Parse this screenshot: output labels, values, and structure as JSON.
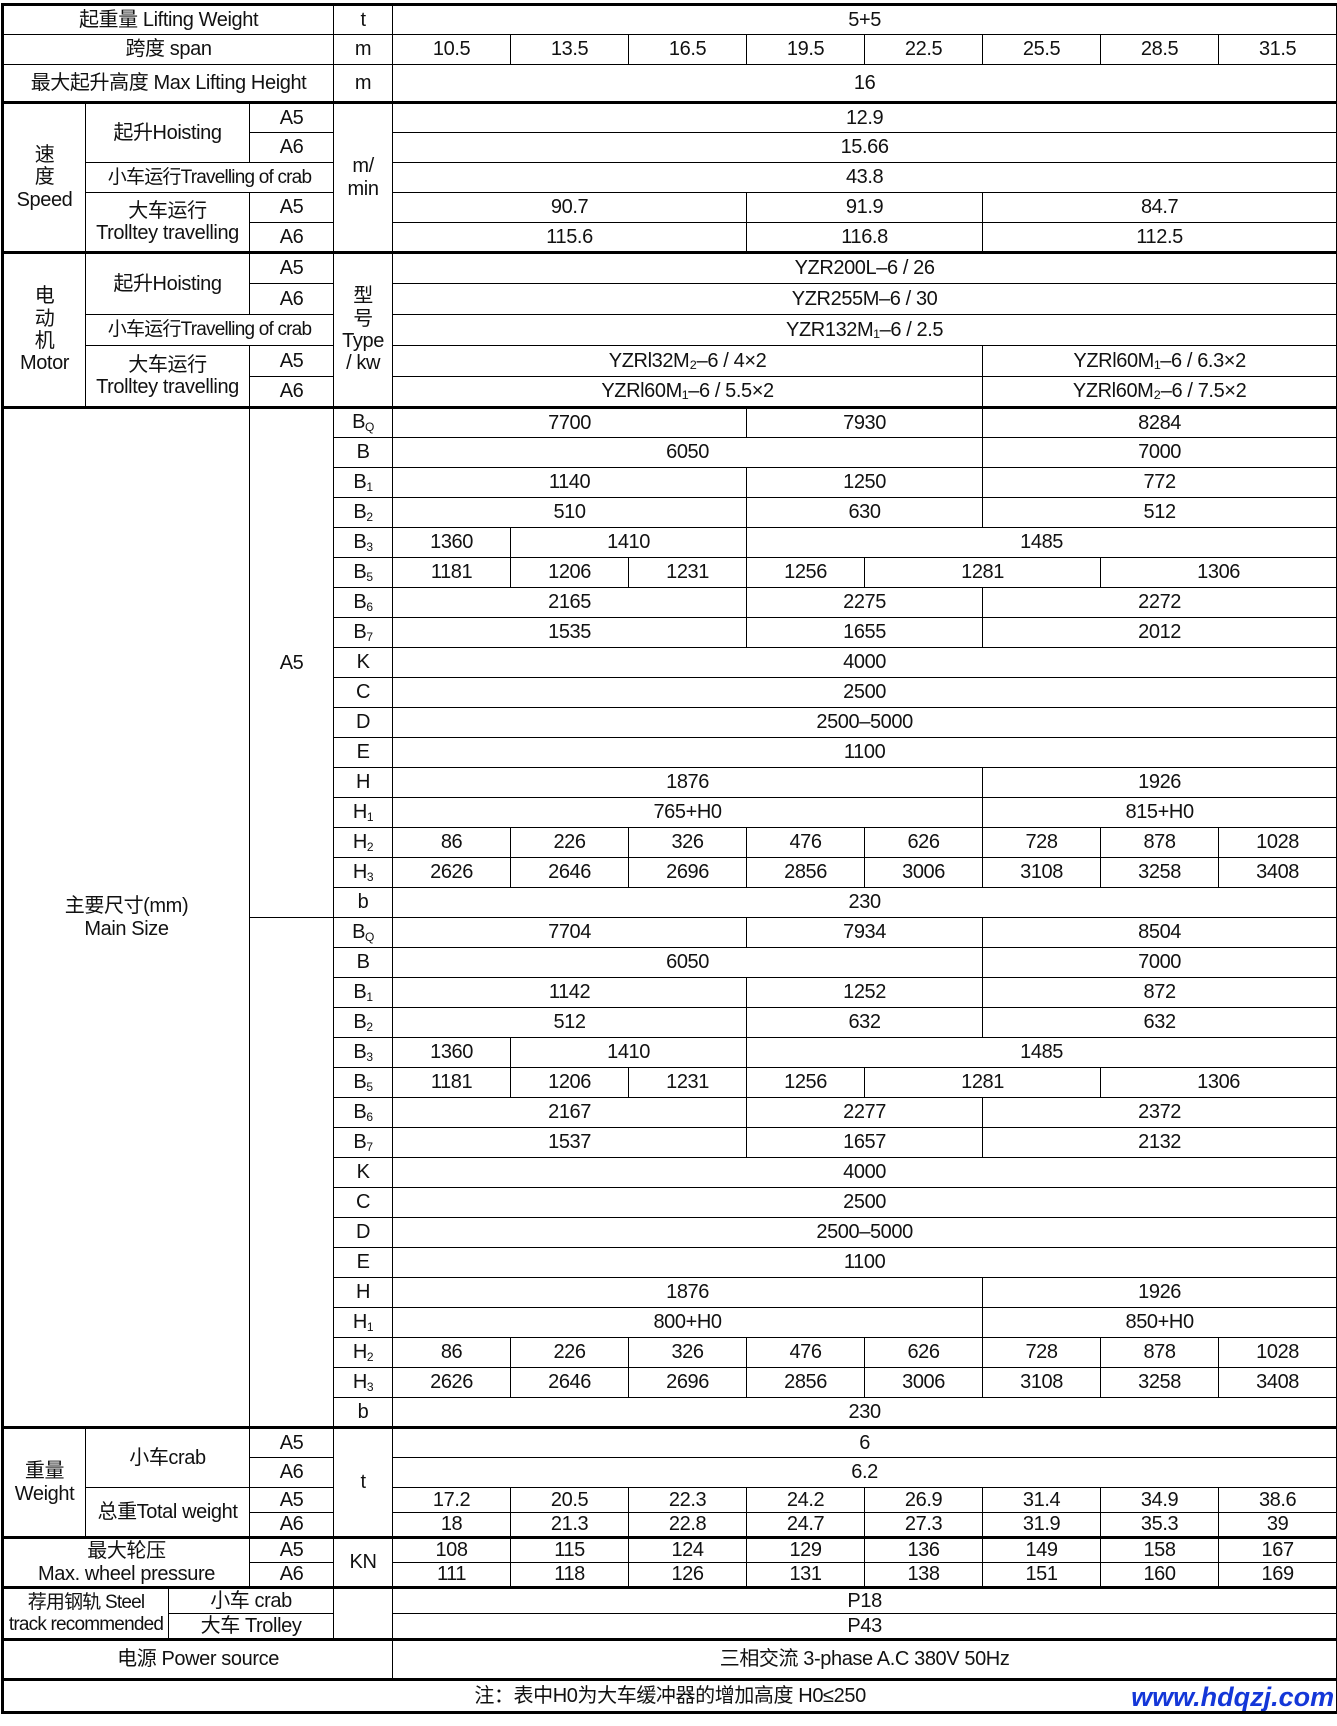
{
  "grades": [
    "A5",
    "A6"
  ],
  "header": {
    "lifting_weight": {
      "label": "起重量 Lifting Weight",
      "unit": "t",
      "values": [
        {
          "v": "5+5",
          "spans": 8
        }
      ]
    },
    "span": {
      "label": "跨度 span",
      "unit": "m",
      "values": [
        "10.5",
        "13.5",
        "16.5",
        "19.5",
        "22.5",
        "25.5",
        "28.5",
        "31.5"
      ]
    },
    "max_height": {
      "label": "最大起升高度 Max Lifting Height",
      "unit": "m",
      "values": [
        {
          "v": "16",
          "spans": 8
        }
      ]
    }
  },
  "speed": {
    "label": [
      "速",
      "度",
      "Speed"
    ],
    "unit": [
      "m/",
      "min"
    ],
    "hoisting": {
      "label": "起升Hoisting",
      "A5": [
        {
          "v": "12.9",
          "spans": 8
        }
      ],
      "A6": [
        {
          "v": "15.66",
          "spans": 8
        }
      ]
    },
    "crab": {
      "label": "小车运行Travelling of crab",
      "values": [
        {
          "v": "43.8",
          "spans": 8
        }
      ]
    },
    "trolley": {
      "label": [
        "大车运行",
        "Trolltey travelling"
      ],
      "A5": [
        {
          "v": "90.7",
          "spans": 3
        },
        {
          "v": "91.9",
          "spans": 2
        },
        {
          "v": "84.7",
          "spans": 3
        }
      ],
      "A6": [
        {
          "v": "115.6",
          "spans": 3
        },
        {
          "v": "116.8",
          "spans": 2
        },
        {
          "v": "112.5",
          "spans": 3
        }
      ]
    }
  },
  "motor": {
    "label": [
      "电",
      "动",
      "机",
      "Motor"
    ],
    "unit": [
      "型",
      "号",
      "Type",
      "/ kw"
    ],
    "hoisting": {
      "label": "起升Hoisting",
      "A5": [
        {
          "v": "YZR200L–6 / 26",
          "spans": 8
        }
      ],
      "A6": [
        {
          "v": "YZR255M–6 / 30",
          "spans": 8
        }
      ]
    },
    "crab": {
      "label": "小车运行Travelling of crab",
      "values": [
        {
          "v": "YZR132M₁–6 / 2.5",
          "spans": 8
        }
      ]
    },
    "trolley": {
      "label": [
        "大车运行",
        "Trolltey travelling"
      ],
      "A5": [
        {
          "v": "YZRl32M₂–6 / 4×2",
          "spans": 5
        },
        {
          "v": "YZRl60M₁–6 / 6.3×2",
          "spans": 3
        }
      ],
      "A6": [
        {
          "v": "YZRl60M₁–6 / 5.5×2",
          "spans": 5
        },
        {
          "v": "YZRl60M₂–6 / 7.5×2",
          "spans": 3
        }
      ]
    }
  },
  "main_size": {
    "label": [
      "主要尺寸(mm)",
      "Main Size"
    ],
    "groups": [
      {
        "grade": "A5",
        "rows": [
          {
            "param": "B",
            "sub": "Q",
            "values": [
              {
                "v": "7700",
                "spans": 3
              },
              {
                "v": "7930",
                "spans": 2
              },
              {
                "v": "8284",
                "spans": 3
              }
            ]
          },
          {
            "param": "B",
            "sub": "",
            "values": [
              {
                "v": "6050",
                "spans": 5
              },
              {
                "v": "7000",
                "spans": 3
              }
            ]
          },
          {
            "param": "B",
            "sub": "1",
            "values": [
              {
                "v": "1140",
                "spans": 3
              },
              {
                "v": "1250",
                "spans": 2
              },
              {
                "v": "772",
                "spans": 3
              }
            ]
          },
          {
            "param": "B",
            "sub": "2",
            "values": [
              {
                "v": "510",
                "spans": 3
              },
              {
                "v": "630",
                "spans": 2
              },
              {
                "v": "512",
                "spans": 3
              }
            ]
          },
          {
            "param": "B",
            "sub": "3",
            "values": [
              {
                "v": "1360",
                "spans": 1
              },
              {
                "v": "1410",
                "spans": 2
              },
              {
                "v": "1485",
                "spans": 5
              }
            ]
          },
          {
            "param": "B",
            "sub": "5",
            "values": [
              {
                "v": "1181",
                "spans": 1
              },
              {
                "v": "1206",
                "spans": 1
              },
              {
                "v": "1231",
                "spans": 1
              },
              {
                "v": "1256",
                "spans": 1
              },
              {
                "v": "1281",
                "spans": 2
              },
              {
                "v": "1306",
                "spans": 2
              }
            ]
          },
          {
            "param": "B",
            "sub": "6",
            "values": [
              {
                "v": "2165",
                "spans": 3
              },
              {
                "v": "2275",
                "spans": 2
              },
              {
                "v": "2272",
                "spans": 3
              }
            ]
          },
          {
            "param": "B",
            "sub": "7",
            "values": [
              {
                "v": "1535",
                "spans": 3
              },
              {
                "v": "1655",
                "spans": 2
              },
              {
                "v": "2012",
                "spans": 3
              }
            ]
          },
          {
            "param": "K",
            "sub": "",
            "values": [
              {
                "v": "4000",
                "spans": 8
              }
            ]
          },
          {
            "param": "C",
            "sub": "",
            "values": [
              {
                "v": "2500",
                "spans": 8
              }
            ]
          },
          {
            "param": "D",
            "sub": "",
            "values": [
              {
                "v": "2500–5000",
                "spans": 8
              }
            ]
          },
          {
            "param": "E",
            "sub": "",
            "values": [
              {
                "v": "1100",
                "spans": 8
              }
            ]
          },
          {
            "param": "H",
            "sub": "",
            "values": [
              {
                "v": "1876",
                "spans": 5
              },
              {
                "v": "1926",
                "spans": 3
              }
            ]
          },
          {
            "param": "H",
            "sub": "1",
            "values": [
              {
                "v": "765+H0",
                "spans": 5
              },
              {
                "v": "815+H0",
                "spans": 3
              }
            ]
          },
          {
            "param": "H",
            "sub": "2",
            "values": [
              "86",
              "226",
              "326",
              "476",
              "626",
              "728",
              "878",
              "1028"
            ]
          },
          {
            "param": "H",
            "sub": "3",
            "values": [
              "2626",
              "2646",
              "2696",
              "2856",
              "3006",
              "3108",
              "3258",
              "3408"
            ]
          },
          {
            "param": "b",
            "sub": "",
            "values": [
              {
                "v": "230",
                "spans": 8
              }
            ]
          }
        ]
      },
      {
        "grade": "",
        "rows": [
          {
            "param": "B",
            "sub": "Q",
            "values": [
              {
                "v": "7704",
                "spans": 3
              },
              {
                "v": "7934",
                "spans": 2
              },
              {
                "v": "8504",
                "spans": 3
              }
            ]
          },
          {
            "param": "B",
            "sub": "",
            "values": [
              {
                "v": "6050",
                "spans": 5
              },
              {
                "v": "7000",
                "spans": 3
              }
            ]
          },
          {
            "param": "B",
            "sub": "1",
            "values": [
              {
                "v": "1142",
                "spans": 3
              },
              {
                "v": "1252",
                "spans": 2
              },
              {
                "v": "872",
                "spans": 3
              }
            ]
          },
          {
            "param": "B",
            "sub": "2",
            "values": [
              {
                "v": "512",
                "spans": 3
              },
              {
                "v": "632",
                "spans": 2
              },
              {
                "v": "632",
                "spans": 3
              }
            ]
          },
          {
            "param": "B",
            "sub": "3",
            "values": [
              {
                "v": "1360",
                "spans": 1
              },
              {
                "v": "1410",
                "spans": 2
              },
              {
                "v": "1485",
                "spans": 5
              }
            ]
          },
          {
            "param": "B",
            "sub": "5",
            "values": [
              {
                "v": "1181",
                "spans": 1
              },
              {
                "v": "1206",
                "spans": 1
              },
              {
                "v": "1231",
                "spans": 1
              },
              {
                "v": "1256",
                "spans": 1
              },
              {
                "v": "1281",
                "spans": 2
              },
              {
                "v": "1306",
                "spans": 2
              }
            ]
          },
          {
            "param": "B",
            "sub": "6",
            "values": [
              {
                "v": "2167",
                "spans": 3
              },
              {
                "v": "2277",
                "spans": 2
              },
              {
                "v": "2372",
                "spans": 3
              }
            ]
          },
          {
            "param": "B",
            "sub": "7",
            "values": [
              {
                "v": "1537",
                "spans": 3
              },
              {
                "v": "1657",
                "spans": 2
              },
              {
                "v": "2132",
                "spans": 3
              }
            ]
          },
          {
            "param": "K",
            "sub": "",
            "values": [
              {
                "v": "4000",
                "spans": 8
              }
            ]
          },
          {
            "param": "C",
            "sub": "",
            "values": [
              {
                "v": "2500",
                "spans": 8
              }
            ]
          },
          {
            "param": "D",
            "sub": "",
            "values": [
              {
                "v": "2500–5000",
                "spans": 8
              }
            ]
          },
          {
            "param": "E",
            "sub": "",
            "values": [
              {
                "v": "1100",
                "spans": 8
              }
            ]
          },
          {
            "param": "H",
            "sub": "",
            "values": [
              {
                "v": "1876",
                "spans": 5
              },
              {
                "v": "1926",
                "spans": 3
              }
            ]
          },
          {
            "param": "H",
            "sub": "1",
            "values": [
              {
                "v": "800+H0",
                "spans": 5
              },
              {
                "v": "850+H0",
                "spans": 3
              }
            ]
          },
          {
            "param": "H",
            "sub": "2",
            "values": [
              "86",
              "226",
              "326",
              "476",
              "626",
              "728",
              "878",
              "1028"
            ]
          },
          {
            "param": "H",
            "sub": "3",
            "values": [
              "2626",
              "2646",
              "2696",
              "2856",
              "3006",
              "3108",
              "3258",
              "3408"
            ]
          },
          {
            "param": "b",
            "sub": "",
            "values": [
              {
                "v": "230",
                "spans": 8
              }
            ]
          }
        ]
      }
    ]
  },
  "weight": {
    "label": [
      "重量",
      "Weight"
    ],
    "unit": "t",
    "crab": {
      "label": "小车crab",
      "A5": [
        {
          "v": "6",
          "spans": 8
        }
      ],
      "A6": [
        {
          "v": "6.2",
          "spans": 8
        }
      ]
    },
    "total": {
      "label": "总重Total weight",
      "A5": [
        "17.2",
        "20.5",
        "22.3",
        "24.2",
        "26.9",
        "31.4",
        "34.9",
        "38.6"
      ],
      "A6": [
        "18",
        "21.3",
        "22.8",
        "24.7",
        "27.3",
        "31.9",
        "35.3",
        "39"
      ]
    }
  },
  "wheel_pressure": {
    "label": [
      "最大轮压",
      "Max.  wheel pressure"
    ],
    "unit": "KN",
    "A5": [
      "108",
      "115",
      "124",
      "129",
      "136",
      "149",
      "158",
      "167"
    ],
    "A6": [
      "111",
      "118",
      "126",
      "131",
      "138",
      "151",
      "160",
      "169"
    ]
  },
  "steel_track": {
    "label": [
      "荐用钢轨 Steel",
      "track recommended"
    ],
    "crab": {
      "label": "小车 crab",
      "values": [
        {
          "v": "P18",
          "spans": 8
        }
      ]
    },
    "trolley": {
      "label": "大车 Trolley",
      "values": [
        {
          "v": "P43",
          "spans": 8
        }
      ]
    }
  },
  "power": {
    "label": "电源 Power source",
    "values": [
      {
        "v": "三相交流  3-phase  A.C  380V  50Hz",
        "spans": 8
      }
    ]
  },
  "note": "注：表中H0为大车缓冲器的增加高度 H0≤250",
  "watermark": "www.hdqzj.com",
  "colors": {
    "watermark": "#1437d8",
    "lines": "#000000"
  }
}
